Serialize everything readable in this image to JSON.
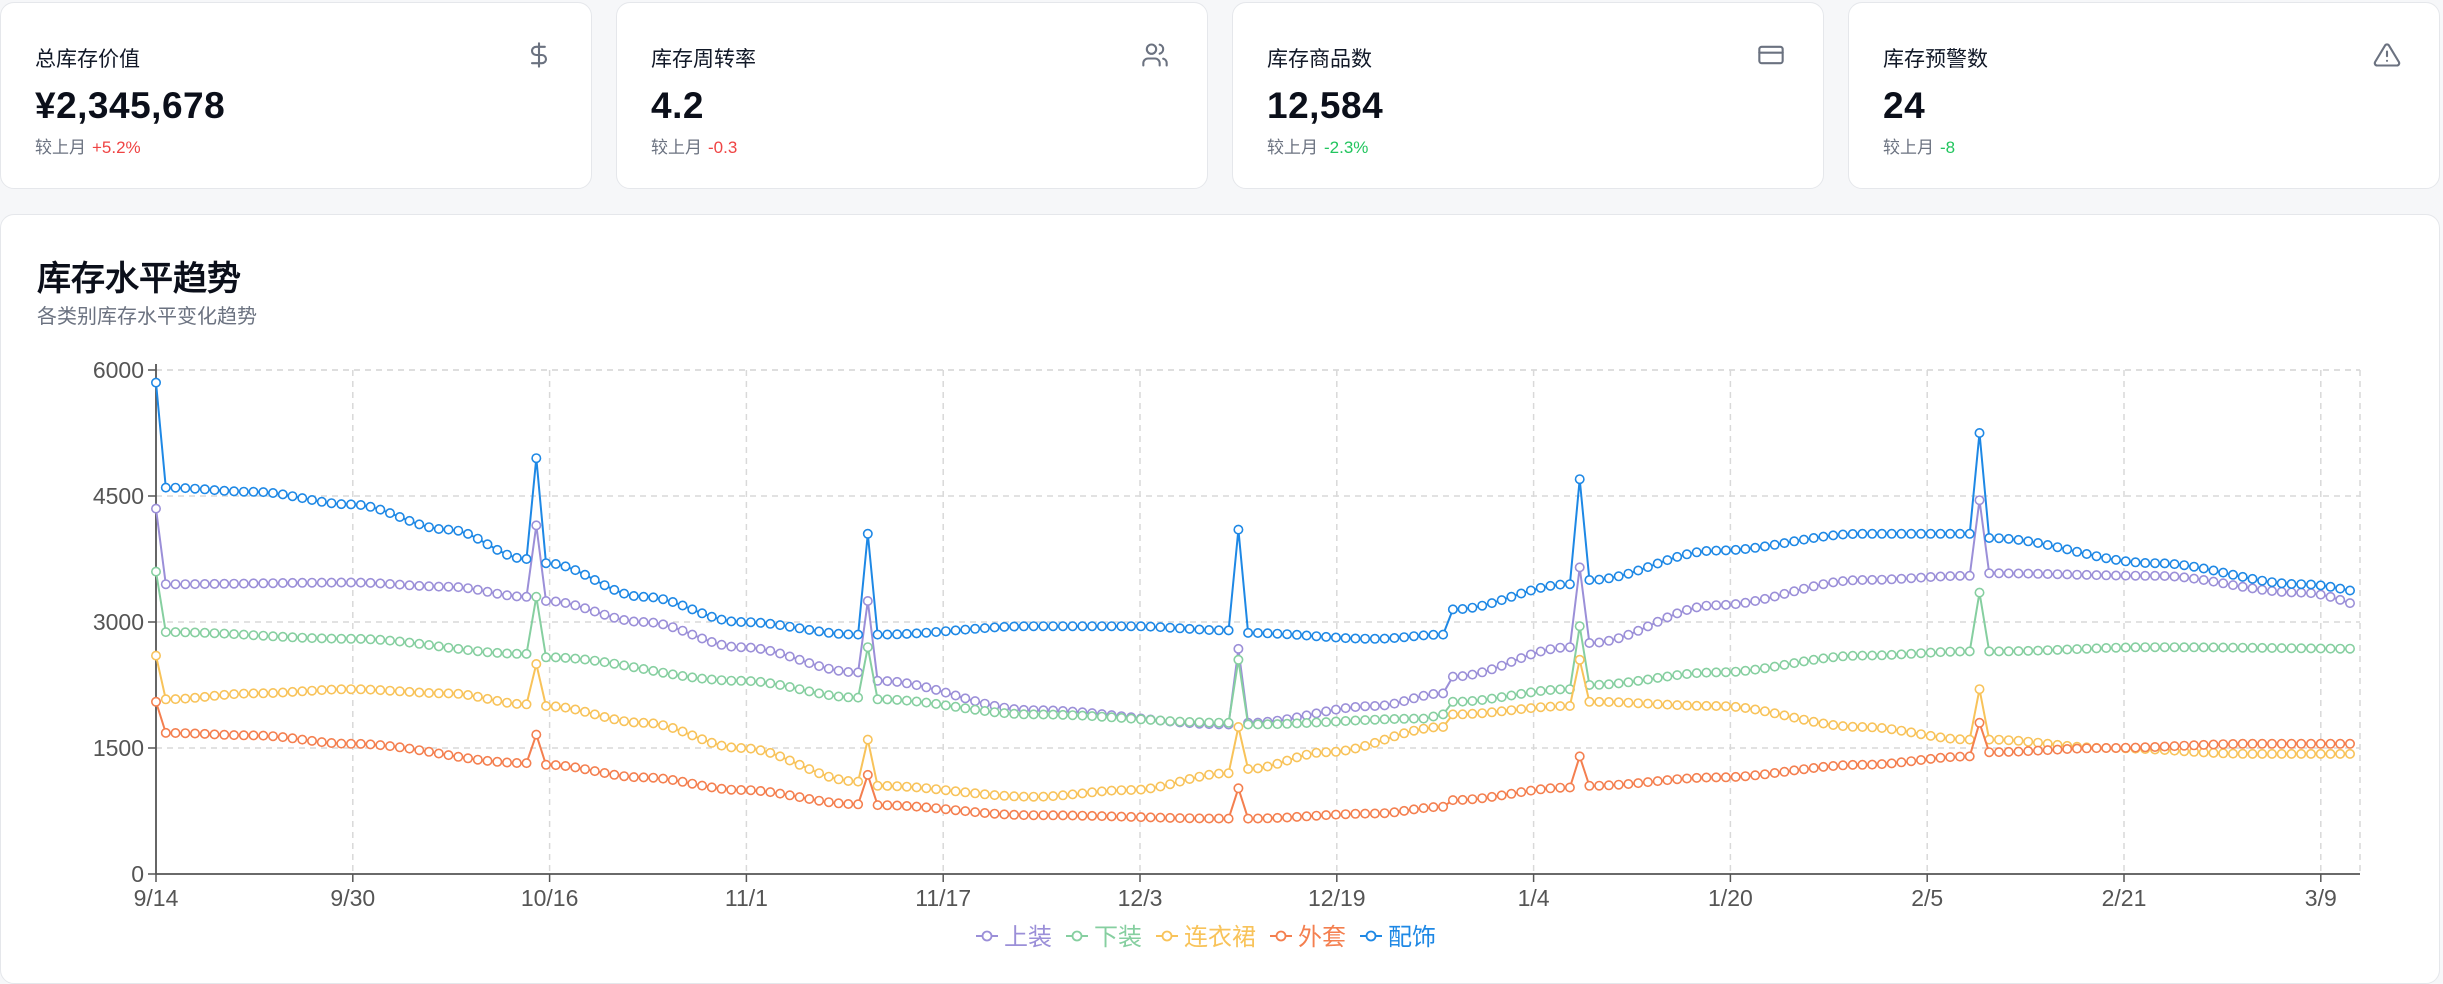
{
  "cards": [
    {
      "label": "总库存价值",
      "value": "¥2,345,678",
      "compare": "较上月",
      "change": "+5.2%",
      "trend": "up",
      "icon": "dollar-icon"
    },
    {
      "label": "库存周转率",
      "value": "4.2",
      "compare": "较上月",
      "change": "-0.3",
      "trend": "up",
      "icon": "users-icon"
    },
    {
      "label": "库存商品数",
      "value": "12,584",
      "compare": "较上月",
      "change": "-2.3%",
      "trend": "down",
      "icon": "credit-card-icon"
    },
    {
      "label": "库存预警数",
      "value": "24",
      "compare": "较上月",
      "change": "-8",
      "trend": "down",
      "icon": "warning-triangle-icon"
    }
  ],
  "panel": {
    "title": "库存水平趋势",
    "subtitle": "各类别库存水平变化趋势"
  },
  "colors": {
    "up": "#ef4444",
    "down": "#22c55e"
  },
  "chart_data": {
    "type": "line",
    "ylim": [
      0,
      6000
    ],
    "yticks": [
      0,
      1500,
      3000,
      4500,
      6000
    ],
    "xticks": [
      "9/14",
      "9/30",
      "10/16",
      "11/1",
      "11/17",
      "12/3",
      "12/19",
      "1/4",
      "1/20",
      "2/5",
      "2/21",
      "3/9"
    ],
    "num_points": 182,
    "grid": true,
    "legend_position": "bottom",
    "series": [
      {
        "name": "上装",
        "color": "#9b8fd8",
        "keypoints": [
          [
            0,
            4350
          ],
          [
            1,
            3450
          ],
          [
            20,
            3470
          ],
          [
            30,
            3420
          ],
          [
            38,
            3300
          ],
          [
            39,
            4150
          ],
          [
            40,
            3250
          ],
          [
            50,
            3000
          ],
          [
            60,
            2700
          ],
          [
            72,
            2400
          ],
          [
            73,
            3250
          ],
          [
            74,
            2300
          ],
          [
            90,
            1950
          ],
          [
            110,
            1780
          ],
          [
            111,
            2680
          ],
          [
            112,
            1800
          ],
          [
            125,
            2000
          ],
          [
            132,
            2150
          ],
          [
            133,
            2350
          ],
          [
            145,
            2700
          ],
          [
            146,
            3650
          ],
          [
            147,
            2750
          ],
          [
            160,
            3200
          ],
          [
            175,
            3500
          ],
          [
            186,
            3550
          ],
          [
            187,
            4450
          ],
          [
            188,
            3580
          ],
          [
            205,
            3550
          ],
          [
            220,
            3350
          ],
          [
            230,
            3100
          ]
        ],
        "spikes": [
          0,
          39,
          73,
          111,
          146,
          187
        ]
      },
      {
        "name": "下装",
        "color": "#86cfa0",
        "keypoints": [
          [
            0,
            3600
          ],
          [
            1,
            2880
          ],
          [
            20,
            2800
          ],
          [
            38,
            2620
          ],
          [
            39,
            3300
          ],
          [
            40,
            2580
          ],
          [
            60,
            2300
          ],
          [
            72,
            2100
          ],
          [
            73,
            2700
          ],
          [
            74,
            2080
          ],
          [
            90,
            1900
          ],
          [
            110,
            1800
          ],
          [
            111,
            2550
          ],
          [
            112,
            1780
          ],
          [
            130,
            1850
          ],
          [
            132,
            1900
          ],
          [
            133,
            2050
          ],
          [
            145,
            2200
          ],
          [
            146,
            2950
          ],
          [
            147,
            2250
          ],
          [
            160,
            2400
          ],
          [
            175,
            2600
          ],
          [
            186,
            2650
          ],
          [
            187,
            3350
          ],
          [
            188,
            2650
          ],
          [
            205,
            2700
          ],
          [
            230,
            2680
          ]
        ],
        "spikes": [
          0,
          39,
          73,
          111,
          146,
          187
        ]
      },
      {
        "name": "连衣裙",
        "color": "#f8c35a",
        "keypoints": [
          [
            0,
            2600
          ],
          [
            1,
            2080
          ],
          [
            10,
            2150
          ],
          [
            20,
            2200
          ],
          [
            30,
            2150
          ],
          [
            38,
            2020
          ],
          [
            39,
            2500
          ],
          [
            40,
            2000
          ],
          [
            50,
            1800
          ],
          [
            60,
            1500
          ],
          [
            72,
            1100
          ],
          [
            73,
            1600
          ],
          [
            74,
            1050
          ],
          [
            90,
            920
          ],
          [
            100,
            1000
          ],
          [
            110,
            1200
          ],
          [
            111,
            1750
          ],
          [
            112,
            1250
          ],
          [
            120,
            1450
          ],
          [
            132,
            1750
          ],
          [
            133,
            1900
          ],
          [
            145,
            2000
          ],
          [
            146,
            2550
          ],
          [
            147,
            2050
          ],
          [
            160,
            2000
          ],
          [
            175,
            1750
          ],
          [
            186,
            1600
          ],
          [
            187,
            2200
          ],
          [
            188,
            1600
          ],
          [
            200,
            1500
          ],
          [
            215,
            1430
          ],
          [
            230,
            1430
          ]
        ],
        "spikes": [
          0,
          39,
          73,
          111,
          146,
          187
        ]
      },
      {
        "name": "外套",
        "color": "#f47f4f",
        "keypoints": [
          [
            0,
            2050
          ],
          [
            1,
            1680
          ],
          [
            10,
            1650
          ],
          [
            20,
            1550
          ],
          [
            38,
            1320
          ],
          [
            39,
            1660
          ],
          [
            40,
            1300
          ],
          [
            50,
            1150
          ],
          [
            60,
            1000
          ],
          [
            72,
            830
          ],
          [
            73,
            1180
          ],
          [
            74,
            820
          ],
          [
            90,
            700
          ],
          [
            110,
            660
          ],
          [
            111,
            1020
          ],
          [
            112,
            660
          ],
          [
            125,
            720
          ],
          [
            132,
            800
          ],
          [
            133,
            880
          ],
          [
            145,
            1030
          ],
          [
            146,
            1400
          ],
          [
            147,
            1050
          ],
          [
            160,
            1150
          ],
          [
            175,
            1300
          ],
          [
            186,
            1400
          ],
          [
            187,
            1800
          ],
          [
            188,
            1450
          ],
          [
            200,
            1500
          ],
          [
            215,
            1550
          ],
          [
            230,
            1550
          ]
        ],
        "spikes": [
          0,
          39,
          73,
          111,
          146,
          187
        ]
      },
      {
        "name": "配饰",
        "color": "#1e88e5",
        "keypoints": [
          [
            0,
            5850
          ],
          [
            1,
            4600
          ],
          [
            10,
            4550
          ],
          [
            20,
            4400
          ],
          [
            30,
            4100
          ],
          [
            38,
            3750
          ],
          [
            39,
            4950
          ],
          [
            40,
            3700
          ],
          [
            50,
            3300
          ],
          [
            60,
            3000
          ],
          [
            72,
            2850
          ],
          [
            73,
            4050
          ],
          [
            74,
            2850
          ],
          [
            90,
            2950
          ],
          [
            100,
            2950
          ],
          [
            110,
            2900
          ],
          [
            111,
            4100
          ],
          [
            112,
            2870
          ],
          [
            125,
            2800
          ],
          [
            132,
            2850
          ],
          [
            133,
            3150
          ],
          [
            145,
            3450
          ],
          [
            146,
            4700
          ],
          [
            147,
            3500
          ],
          [
            160,
            3850
          ],
          [
            175,
            4050
          ],
          [
            186,
            4050
          ],
          [
            187,
            5250
          ],
          [
            188,
            4000
          ],
          [
            205,
            3700
          ],
          [
            220,
            3450
          ],
          [
            230,
            3300
          ]
        ],
        "spikes": [
          0,
          39,
          73,
          111,
          146,
          187
        ]
      }
    ]
  }
}
